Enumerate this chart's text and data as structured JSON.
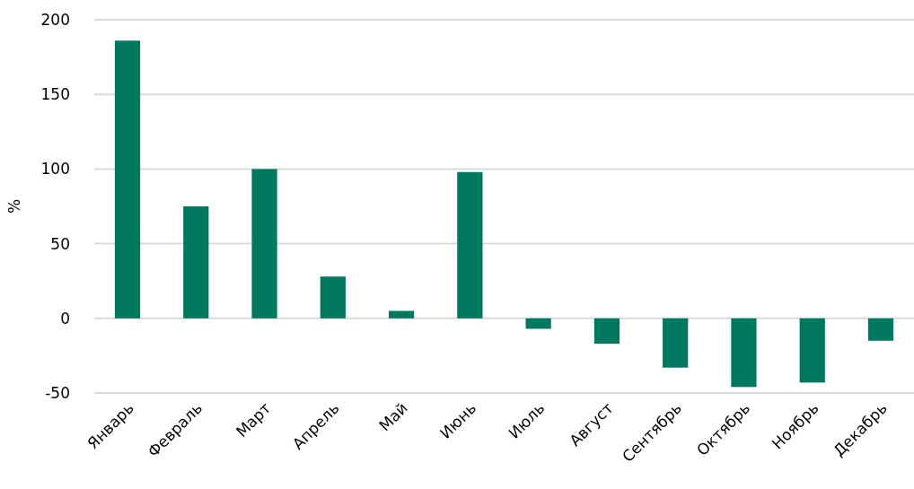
{
  "chart_data": {
    "type": "bar",
    "ylabel": "%",
    "categories": [
      "Январь",
      "Февраль",
      "Март",
      "Апрель",
      "Май",
      "Июнь",
      "Июль",
      "Август",
      "Сентябрь",
      "Октябрь",
      "Ноябрь",
      "Декабрь"
    ],
    "values": [
      186,
      75,
      100,
      28,
      5,
      98,
      -7,
      -17,
      -33,
      -46,
      -43,
      -15
    ],
    "color": "#00775f",
    "ylim": [
      -50,
      200
    ],
    "yticks": [
      -50,
      0,
      50,
      100,
      150,
      200
    ],
    "grid": "y"
  }
}
